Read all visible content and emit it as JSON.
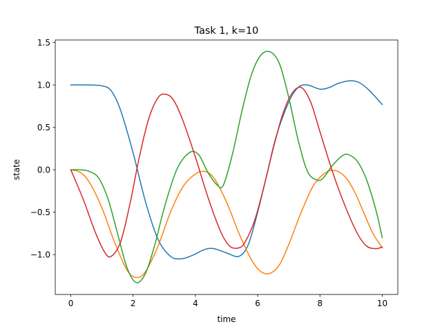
{
  "chart_data": {
    "type": "line",
    "title": "Task 1, k=10",
    "xlabel": "time",
    "ylabel": "state",
    "xlim": [
      -0.5,
      10.5
    ],
    "ylim": [
      -1.47,
      1.53
    ],
    "xticks": [
      0,
      2,
      4,
      6,
      8,
      10
    ],
    "xtick_labels": [
      "0",
      "2",
      "4",
      "6",
      "8",
      "10"
    ],
    "yticks": [
      -1.0,
      -0.5,
      0.0,
      0.5,
      1.0,
      1.5
    ],
    "ytick_labels": [
      "−1.0",
      "−0.5",
      "0.0",
      "0.5",
      "1.0",
      "1.5"
    ],
    "grid": false,
    "legend": "none",
    "series": [
      {
        "color": "#1f77b4",
        "x": [
          0,
          0.5,
          1.0,
          1.3,
          1.6,
          2.0,
          2.4,
          2.8,
          3.2,
          3.55,
          3.9,
          4.3,
          4.6,
          5.0,
          5.4,
          5.7,
          6.0,
          6.3,
          6.6,
          7.0,
          7.3,
          7.6,
          8.0,
          8.3,
          8.6,
          9.0,
          9.3,
          9.6,
          10.0
        ],
        "y": [
          1.0,
          1.0,
          0.99,
          0.93,
          0.7,
          0.2,
          -0.38,
          -0.82,
          -1.02,
          -1.05,
          -1.01,
          -0.94,
          -0.93,
          -0.98,
          -1.02,
          -0.88,
          -0.5,
          -0.05,
          0.4,
          0.8,
          0.97,
          1.0,
          0.95,
          0.97,
          1.02,
          1.05,
          1.02,
          0.93,
          0.77
        ]
      },
      {
        "color": "#ff7f0e",
        "x": [
          0,
          0.3,
          0.6,
          1.0,
          1.4,
          1.8,
          2.1,
          2.4,
          2.8,
          3.2,
          3.6,
          4.0,
          4.3,
          4.6,
          5.0,
          5.4,
          5.8,
          6.1,
          6.4,
          6.7,
          7.0,
          7.4,
          7.8,
          8.2,
          8.5,
          8.8,
          9.1,
          9.4,
          9.7,
          10.0
        ],
        "y": [
          0.0,
          -0.03,
          -0.15,
          -0.45,
          -0.85,
          -1.18,
          -1.27,
          -1.2,
          -0.9,
          -0.5,
          -0.2,
          -0.05,
          -0.02,
          -0.1,
          -0.38,
          -0.75,
          -1.06,
          -1.2,
          -1.22,
          -1.12,
          -0.88,
          -0.5,
          -0.18,
          -0.03,
          -0.01,
          -0.08,
          -0.25,
          -0.5,
          -0.75,
          -0.92
        ]
      },
      {
        "color": "#2ca02c",
        "x": [
          0,
          0.3,
          0.6,
          0.9,
          1.2,
          1.5,
          1.8,
          2.1,
          2.4,
          2.7,
          3.0,
          3.4,
          3.8,
          4.1,
          4.4,
          4.7,
          4.9,
          5.2,
          5.5,
          5.8,
          6.1,
          6.4,
          6.7,
          7.0,
          7.3,
          7.6,
          7.9,
          8.1,
          8.4,
          8.7,
          8.9,
          9.2,
          9.5,
          9.8,
          10.0
        ],
        "y": [
          0.0,
          0.0,
          -0.02,
          -0.1,
          -0.35,
          -0.75,
          -1.15,
          -1.33,
          -1.22,
          -0.88,
          -0.45,
          0.0,
          0.2,
          0.18,
          -0.03,
          -0.18,
          -0.18,
          0.2,
          0.7,
          1.12,
          1.35,
          1.39,
          1.25,
          0.85,
          0.35,
          -0.02,
          -0.12,
          -0.1,
          0.05,
          0.16,
          0.18,
          0.1,
          -0.12,
          -0.48,
          -0.8
        ]
      },
      {
        "color": "#d62728",
        "x": [
          0,
          0.4,
          0.8,
          1.1,
          1.3,
          1.6,
          1.9,
          2.2,
          2.5,
          2.8,
          3.05,
          3.3,
          3.6,
          4.0,
          4.4,
          4.8,
          5.1,
          5.4,
          5.6,
          5.9,
          6.2,
          6.5,
          6.8,
          7.1,
          7.4,
          7.7,
          8.0,
          8.4,
          8.8,
          9.2,
          9.5,
          9.8,
          10.0
        ],
        "y": [
          0.0,
          -0.35,
          -0.75,
          -0.98,
          -1.02,
          -0.85,
          -0.4,
          0.15,
          0.6,
          0.85,
          0.89,
          0.82,
          0.58,
          0.15,
          -0.32,
          -0.72,
          -0.9,
          -0.92,
          -0.85,
          -0.6,
          -0.2,
          0.25,
          0.65,
          0.9,
          0.97,
          0.8,
          0.45,
          -0.02,
          -0.42,
          -0.75,
          -0.9,
          -0.93,
          -0.91
        ]
      }
    ]
  }
}
